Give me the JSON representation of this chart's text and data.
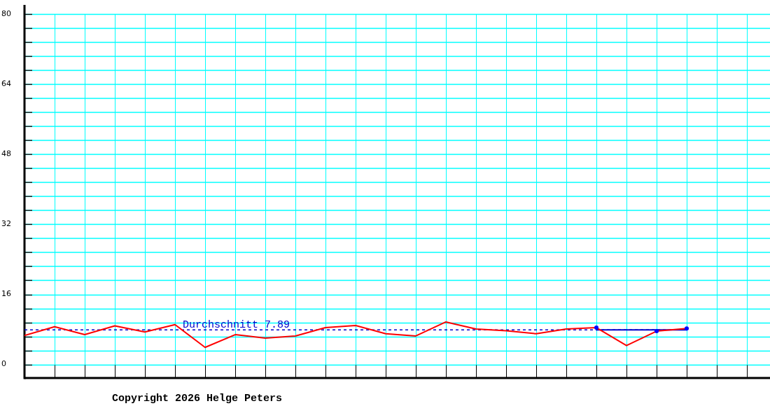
{
  "chart_data": {
    "type": "line",
    "categories": [
      null,
      null,
      null,
      null,
      null,
      null,
      null,
      null,
      null,
      null,
      null,
      null,
      null,
      null,
      null,
      null,
      null,
      null,
      null,
      null,
      null,
      null,
      null,
      null,
      null
    ],
    "ylim": [
      -3.1,
      82.1
    ],
    "yticks": [
      0,
      {
        "value": 3.2,
        "label": null
      },
      {
        "value": 6.4,
        "label": null
      },
      {
        "value": 9.6,
        "label": null
      },
      {
        "value": 12.8,
        "label": null
      },
      16,
      {
        "value": 19.2,
        "label": null
      },
      {
        "value": 22.4,
        "label": null
      },
      {
        "value": 25.6,
        "label": null
      },
      {
        "value": 28.8,
        "label": null
      },
      32,
      {
        "value": 35.2,
        "label": null
      },
      {
        "value": 38.4,
        "label": null
      },
      {
        "value": 41.6,
        "label": null
      },
      {
        "value": 44.8,
        "label": null
      },
      48,
      {
        "value": 51.2,
        "label": null
      },
      {
        "value": 54.4,
        "label": null
      },
      {
        "value": 57.6,
        "label": null
      },
      {
        "value": 60.8,
        "label": null
      },
      64,
      {
        "value": 67.2,
        "label": null
      },
      {
        "value": 70.4,
        "label": null
      },
      {
        "value": 73.6,
        "label": null
      },
      {
        "value": 76.8,
        "label": null
      },
      80
    ],
    "grid": true,
    "tick_labels": "y",
    "series": [
      {
        "color": "#0000cc",
        "marker": "none",
        "line_style": "solid",
        "values": [
          null,
          null,
          null,
          null,
          null,
          null,
          null,
          null,
          null,
          null,
          null,
          null,
          null,
          null,
          null,
          null,
          null,
          null,
          null,
          7.9,
          7.9,
          7.9,
          7.9,
          null,
          null
        ]
      },
      {
        "color": "#ff0000",
        "marker": "none",
        "line_style": "solid",
        "values": [
          6.6,
          8.6,
          6.8,
          8.8,
          7.4,
          9.1,
          3.9,
          6.8,
          6.0,
          6.5,
          8.4,
          8.9,
          7.0,
          6.5,
          9.7,
          8.1,
          7.7,
          7.0,
          8.1,
          8.4,
          4.3,
          7.6,
          8.2,
          null,
          null
        ]
      },
      {
        "type": "scatter",
        "color": "#0000ff",
        "marker": "circle",
        "values": [
          null,
          null,
          null,
          null,
          null,
          null,
          null,
          null,
          null,
          null,
          null,
          null,
          null,
          null,
          null,
          null,
          null,
          null,
          null,
          8.4,
          null,
          7.6,
          8.2,
          null,
          null
        ]
      }
    ],
    "ref_lines": [
      {
        "axis": "y",
        "value": 7.89,
        "label": "Durchschnitt 7.89",
        "color": "#0000cc",
        "line_style": "dashed"
      }
    ],
    "annotations": [
      "Copyright 2026 Helge Peters"
    ]
  }
}
